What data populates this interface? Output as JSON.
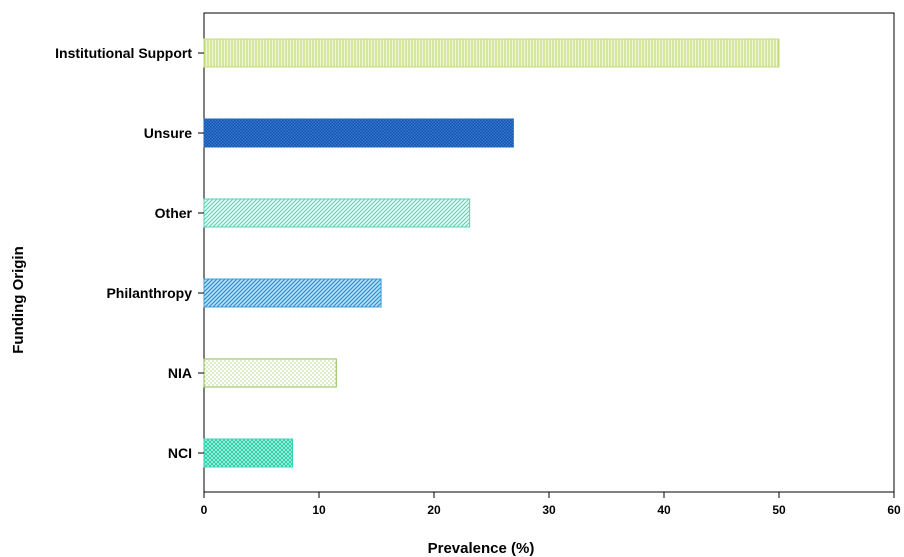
{
  "chart_data": {
    "type": "bar",
    "orientation": "horizontal",
    "title": "",
    "xlabel": "Prevalence (%)",
    "ylabel": "Funding Origin",
    "xlim": [
      0,
      60
    ],
    "xticks": [
      0,
      10,
      20,
      30,
      40,
      50,
      60
    ],
    "grid": false,
    "legend": "none",
    "categories": [
      "Institutional Support",
      "Unsure",
      "Other",
      "Philanthropy",
      "NIA",
      "NCI"
    ],
    "values": [
      50,
      26.9,
      23.1,
      15.4,
      11.5,
      7.7
    ],
    "colors": {
      "Institutional Support": "#c5dc7a",
      "Unsure": "#2166c0",
      "Other": "#52d4b4",
      "Philanthropy": "#3aa0dc",
      "NIA": "#8cbc50",
      "NCI": "#30d8b4"
    },
    "patterns": {
      "Institutional Support": "vertical-lines",
      "Unsure": "dense-dots",
      "Other": "diagonal-lines",
      "Philanthropy": "diagonal-lines",
      "NIA": "sparse-dots",
      "NCI": "crosshatch"
    }
  }
}
